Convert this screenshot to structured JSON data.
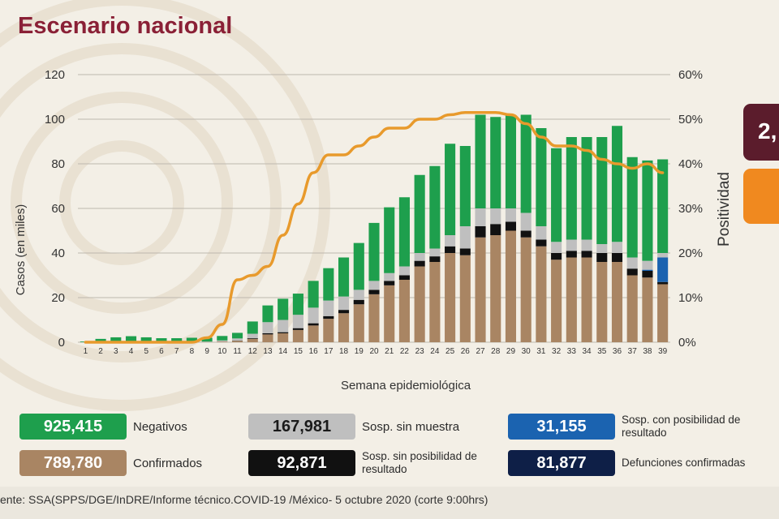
{
  "title": "Escenario nacional",
  "colors": {
    "negative": "#1e9f4d",
    "confirmed": "#a98563",
    "sosp_sin_muestra": "#bfbfbf",
    "sosp_sin_posibilidad": "#111111",
    "sosp_con_posibilidad": "#1b63b0",
    "defunciones": "#0e1f47",
    "positividad": "#e89a2c",
    "title": "#8a2036"
  },
  "chart_data": {
    "type": "bar",
    "stacked": true,
    "title": "Escenario nacional",
    "xlabel": "Semana epidemiológica",
    "ylabel": "Casos (en miles)",
    "y2label": "Positividad",
    "ylim": [
      0,
      120
    ],
    "y2lim": [
      0,
      60
    ],
    "yticks": [
      "0",
      "20",
      "40",
      "60",
      "80",
      "100",
      "120"
    ],
    "y2ticks": [
      "0%",
      "10%",
      "20%",
      "30%",
      "40%",
      "50%",
      "60%"
    ],
    "grid": true,
    "categories": [
      "1",
      "2",
      "3",
      "4",
      "5",
      "6",
      "7",
      "8",
      "9",
      "10",
      "11",
      "12",
      "13",
      "14",
      "15",
      "16",
      "17",
      "18",
      "19",
      "20",
      "21",
      "22",
      "23",
      "24",
      "25",
      "26",
      "27",
      "28",
      "29",
      "30",
      "31",
      "32",
      "33",
      "34",
      "35",
      "36",
      "37",
      "38",
      "39"
    ],
    "series": [
      {
        "name": "Confirmados",
        "color": "#a98563",
        "values": [
          0,
          0,
          0,
          0,
          0,
          0,
          0,
          0,
          0.1,
          0.3,
          0.6,
          1.5,
          3.5,
          4,
          5.5,
          7.5,
          10.5,
          13,
          17,
          21.5,
          25.5,
          28,
          34,
          36,
          40,
          39,
          47,
          48,
          50,
          47,
          43,
          37,
          38,
          38,
          36,
          36,
          30,
          29,
          26
        ]
      },
      {
        "name": "Sosp. sin posibilidad de resultado",
        "color": "#111111",
        "values": [
          0,
          0,
          0,
          0,
          0,
          0,
          0,
          0,
          0,
          0,
          0.1,
          0.3,
          0.5,
          0.5,
          0.8,
          1,
          1.2,
          1.5,
          2,
          2,
          2,
          2,
          2.5,
          2.5,
          3,
          3,
          5,
          5,
          4,
          3,
          3,
          3,
          3,
          3,
          4,
          4,
          3,
          3,
          1
        ]
      },
      {
        "name": "Sosp. con posibilidad de resultado",
        "color": "#1b63b0",
        "values": [
          0,
          0,
          0,
          0,
          0,
          0,
          0,
          0,
          0,
          0,
          0,
          0,
          0,
          0,
          0,
          0,
          0,
          0,
          0,
          0,
          0,
          0,
          0,
          0,
          0,
          0,
          0,
          0,
          0,
          0,
          0,
          0,
          0,
          0,
          0,
          0,
          0,
          0.5,
          11
        ]
      },
      {
        "name": "Sosp. sin muestra",
        "color": "#bfbfbf",
        "values": [
          0,
          0,
          0,
          0,
          0,
          0,
          0,
          0,
          0.2,
          0.5,
          1,
          2,
          5,
          5.5,
          6,
          7,
          7,
          6,
          4.5,
          4,
          3.5,
          4,
          3.5,
          3.5,
          5,
          10,
          8,
          7,
          6,
          8,
          6,
          5,
          5,
          5,
          4,
          5,
          5,
          4,
          2
        ]
      },
      {
        "name": "Negativos",
        "color": "#1e9f4d",
        "values": [
          0.3,
          1.5,
          2.2,
          2.7,
          2.2,
          1.8,
          1.8,
          2,
          1.7,
          2,
          2.5,
          5.5,
          7.5,
          9.5,
          9.5,
          12,
          14.5,
          17.5,
          21,
          26,
          29.5,
          31,
          35,
          37,
          41,
          36,
          42,
          41,
          42,
          44,
          44,
          42,
          46,
          46,
          48,
          52,
          45,
          45,
          42
        ]
      }
    ],
    "line": {
      "name": "Positividad",
      "axis": "right",
      "color": "#e89a2c",
      "values": [
        0,
        0,
        0,
        0,
        0,
        0,
        0,
        0,
        1,
        4,
        14,
        15,
        17,
        24,
        31,
        38,
        42,
        42,
        44,
        46,
        48,
        48,
        50,
        50,
        51,
        51.5,
        51.5,
        51.5,
        51,
        49,
        46,
        44,
        44,
        43,
        41,
        40,
        39,
        40,
        38
      ]
    },
    "legend": [
      {
        "value": "925,415",
        "label": "Negativos",
        "color": "#1e9f4d"
      },
      {
        "value": "167,981",
        "label": "Sosp. sin muestra",
        "color": "#bfbfbf"
      },
      {
        "value": "31,155",
        "label": "Sosp. con posibilidad de resultado",
        "color": "#1b63b0"
      },
      {
        "value": "789,780",
        "label": "Confirmados",
        "color": "#a98563"
      },
      {
        "value": "92,871",
        "label": "Sosp. sin posibilidad de resultado",
        "color": "#111111"
      },
      {
        "value": "81,877",
        "label": "Defunciones confirmadas",
        "color": "#0e1f47"
      }
    ]
  },
  "legend_labels": {
    "negativos_value": "925,415",
    "negativos_label": "Negativos",
    "sin_muestra_value": "167,981",
    "sin_muestra_label": "Sosp. sin muestra",
    "con_posibilidad_value": "31,155",
    "con_posibilidad_label": "Sosp. con posibilidad de resultado",
    "confirmados_value": "789,780",
    "confirmados_label": "Confirmados",
    "sin_posibilidad_value": "92,871",
    "sin_posibilidad_label": "Sosp. sin posibilidad de resultado",
    "defunciones_value": "81,877",
    "defunciones_label": "Defunciones confirmadas"
  },
  "side_box": {
    "text": "2,"
  },
  "footer": {
    "text": "ente: SSA(SPPS/DGE/InDRE/Informe técnico.COVID-19 /México- 5 octubre 2020 (corte 9:00hrs)"
  }
}
